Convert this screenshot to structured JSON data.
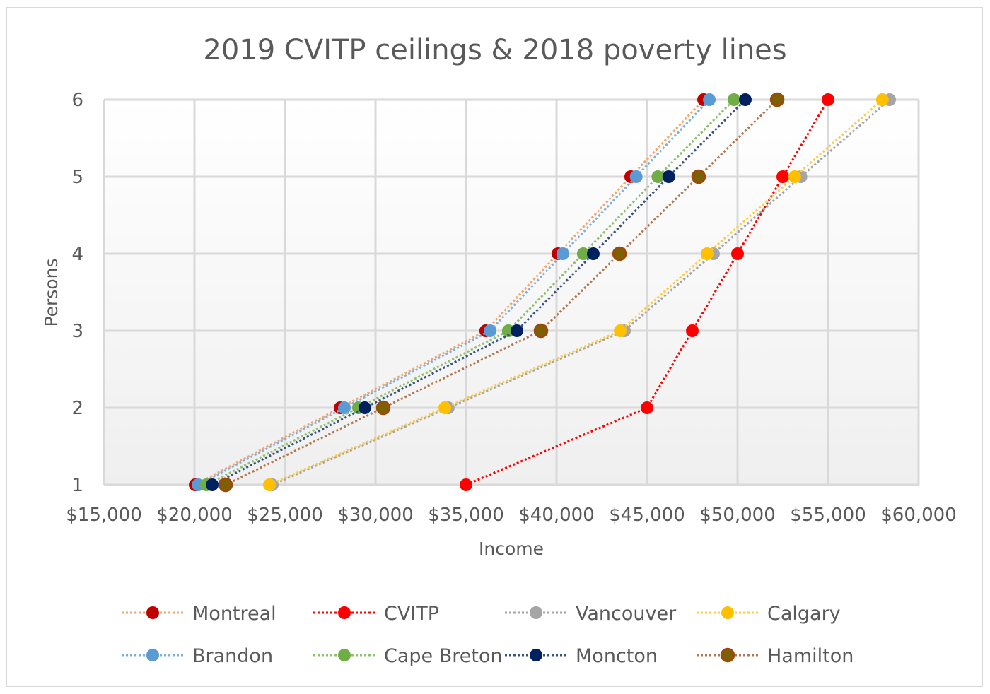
{
  "chart_data": {
    "type": "scatter",
    "title": "2019 CVITP ceilings & 2018 poverty lines",
    "xlabel": "Income",
    "ylabel": "Persons",
    "xlim": [
      15000,
      60000
    ],
    "ylim": [
      1,
      6
    ],
    "x_ticks": [
      "$15,000",
      "$20,000",
      "$25,000",
      "$30,000",
      "$35,000",
      "$40,000",
      "$45,000",
      "$50,000",
      "$55,000",
      "$60,000"
    ],
    "y_ticks": [
      "1",
      "2",
      "3",
      "4",
      "5",
      "6"
    ],
    "grid": true,
    "legend_position": "bottom",
    "line_style": "dotted with markers",
    "y": [
      1,
      2,
      3,
      4,
      5,
      6
    ],
    "series": [
      {
        "name": "Montreal",
        "marker_color": "#C00000",
        "line_color": "#F4A46A",
        "x": [
          20040,
          28050,
          36090,
          40080,
          44100,
          48125
        ]
      },
      {
        "name": "CVITP",
        "marker_color": "#FF0000",
        "line_color": "#FF0000",
        "x": [
          35000,
          45000,
          47500,
          50000,
          52500,
          55000
        ]
      },
      {
        "name": "Vancouver",
        "marker_color": "#A5A5A5",
        "line_color": "#A5A5A5",
        "x": [
          24300,
          34020,
          43750,
          48670,
          53500,
          58400
        ]
      },
      {
        "name": "Calgary",
        "marker_color": "#FFC000",
        "line_color": "#FFCC44",
        "x": [
          24140,
          33830,
          43520,
          48320,
          53160,
          58000
        ]
      },
      {
        "name": "Brandon",
        "marker_color": "#5B9BD5",
        "line_color": "#7EB0DE",
        "x": [
          20200,
          28280,
          36330,
          40350,
          44400,
          48440
        ]
      },
      {
        "name": "Cape Breton",
        "marker_color": "#70AD47",
        "line_color": "#8FC06E",
        "x": [
          20660,
          29060,
          37340,
          41480,
          45600,
          49800
        ]
      },
      {
        "name": "Moncton",
        "marker_color": "#002060",
        "line_color": "#3A5080",
        "x": [
          20980,
          29410,
          37810,
          42030,
          46200,
          50430
        ]
      },
      {
        "name": "Hamilton",
        "marker_color": "#7F6000",
        "marker_border": "#9E480E",
        "line_color": "#B07850",
        "x": [
          21720,
          30430,
          39140,
          43480,
          47850,
          52190
        ]
      }
    ]
  }
}
